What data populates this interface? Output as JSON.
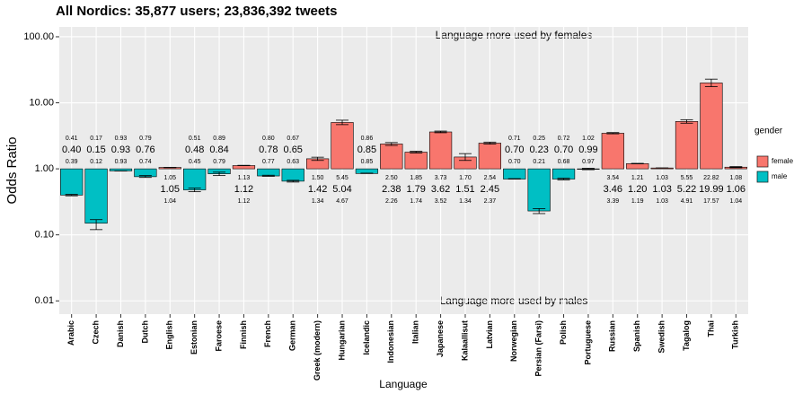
{
  "chart_data": {
    "type": "bar",
    "log_scale": true,
    "grid": true,
    "title": "All Nordics: 35,877 users; 23,836,392 tweets",
    "x_label": "Language",
    "y_label": "Odds Ratio",
    "annotations": [
      {
        "text": "Language more used by females",
        "color": "#F8766D"
      },
      {
        "text": "Language more used by males",
        "color": "#00BFC4"
      }
    ],
    "categories": [
      "Arabic",
      "Czech",
      "Danish",
      "Dutch",
      "English",
      "Estonian",
      "Faroese",
      "Finnish",
      "French",
      "German",
      "Greek (modern)",
      "Hungarian",
      "Icelandic",
      "Indonesian",
      "Italian",
      "Japanese",
      "Kalaallisut",
      "Latvian",
      "Norwegian",
      "Persian (Farsi)",
      "Polish",
      "Portuguese",
      "Russian",
      "Spanish",
      "Swedish",
      "Tagalog",
      "Thai",
      "Turkish"
    ],
    "category_label_colors": [
      "#000",
      "#000",
      "#000",
      "#000",
      "#000",
      "#000",
      "#000",
      "#000",
      "#000",
      "#000",
      "#000",
      "#000",
      "#000",
      "#000",
      "#000",
      "#000",
      "#000",
      "#000",
      "#000",
      "#000",
      "#000",
      "#E0115F",
      "#000",
      "#000",
      "#000",
      "#000",
      "#000",
      "#000"
    ],
    "gender": [
      "male",
      "male",
      "male",
      "male",
      "female",
      "male",
      "male",
      "female",
      "male",
      "male",
      "female",
      "female",
      "male",
      "female",
      "female",
      "female",
      "female",
      "female",
      "male",
      "male",
      "male",
      "male",
      "female",
      "female",
      "female",
      "female",
      "female",
      "female"
    ],
    "values": [
      0.4,
      0.15,
      0.93,
      0.76,
      1.05,
      0.48,
      0.84,
      1.12,
      0.78,
      0.65,
      1.42,
      5.04,
      0.85,
      2.38,
      1.79,
      3.62,
      1.51,
      2.45,
      0.7,
      0.23,
      0.7,
      0.99,
      3.46,
      1.2,
      1.03,
      5.22,
      19.99,
      1.06
    ],
    "value_labels": [
      "0.40",
      "0.15",
      "0.93",
      "0.76",
      "1.05",
      "0.48",
      "0.84",
      "1.12",
      "0.78",
      "0.65",
      "1.42",
      "5.04",
      "0.85",
      "2.38",
      "1.79",
      "3.62",
      "1.51",
      "2.45",
      "0.70",
      "0.23",
      "0.70",
      "0.99",
      "3.46",
      "1.20",
      "1.03",
      "5.22",
      "19.99",
      "1.06"
    ],
    "upper": [
      0.41,
      0.17,
      0.93,
      0.79,
      1.05,
      0.51,
      0.89,
      1.13,
      0.8,
      0.67,
      1.5,
      5.45,
      0.86,
      2.5,
      1.85,
      3.73,
      1.7,
      2.54,
      0.71,
      0.25,
      0.72,
      1.02,
      3.54,
      1.21,
      1.03,
      5.55,
      22.82,
      1.08
    ],
    "upper_labels": [
      "0.41",
      "0.17",
      "0.93",
      "0.79",
      "1.05",
      "0.51",
      "0.89",
      "1.13",
      "0.80",
      "0.67",
      "1.50",
      "5.45",
      "0.86",
      "2.50",
      "1.85",
      "3.73",
      "1.70",
      "2.54",
      "0.71",
      "0.25",
      "0.72",
      "1.02",
      "3.54",
      "1.21",
      "1.03",
      "5.55",
      "22.82",
      "1.08"
    ],
    "lower": [
      0.39,
      0.12,
      0.93,
      0.74,
      1.04,
      0.45,
      0.79,
      1.12,
      0.77,
      0.63,
      1.34,
      4.67,
      0.85,
      2.26,
      1.74,
      3.52,
      1.34,
      2.37,
      0.7,
      0.21,
      0.68,
      0.97,
      3.39,
      1.19,
      1.03,
      4.91,
      17.57,
      1.04
    ],
    "lower_labels": [
      "0.39",
      "0.12",
      "0.93",
      "0.74",
      "1.04",
      "0.45",
      "0.79",
      "1.12",
      "0.77",
      "0.63",
      "1.34",
      "4.67",
      "0.85",
      "2.26",
      "1.74",
      "3.52",
      "1.34",
      "2.37",
      "0.70",
      "0.21",
      "0.68",
      "0.97",
      "3.39",
      "1.19",
      "1.03",
      "4.91",
      "17.57",
      "1.04"
    ],
    "legend": {
      "title": "gender",
      "position": "right",
      "entries": [
        {
          "name": "female",
          "color": "#F8766D"
        },
        {
          "name": "male",
          "color": "#00BFC4"
        }
      ]
    },
    "ylim": [
      0.0063,
      141
    ],
    "yticks": [
      {
        "value": 0.01,
        "label": "0.01"
      },
      {
        "value": 0.1,
        "label": "0.10"
      },
      {
        "value": 1,
        "label": "1.00"
      },
      {
        "value": 10,
        "label": "10.00"
      },
      {
        "value": 100,
        "label": "100.00"
      }
    ]
  }
}
